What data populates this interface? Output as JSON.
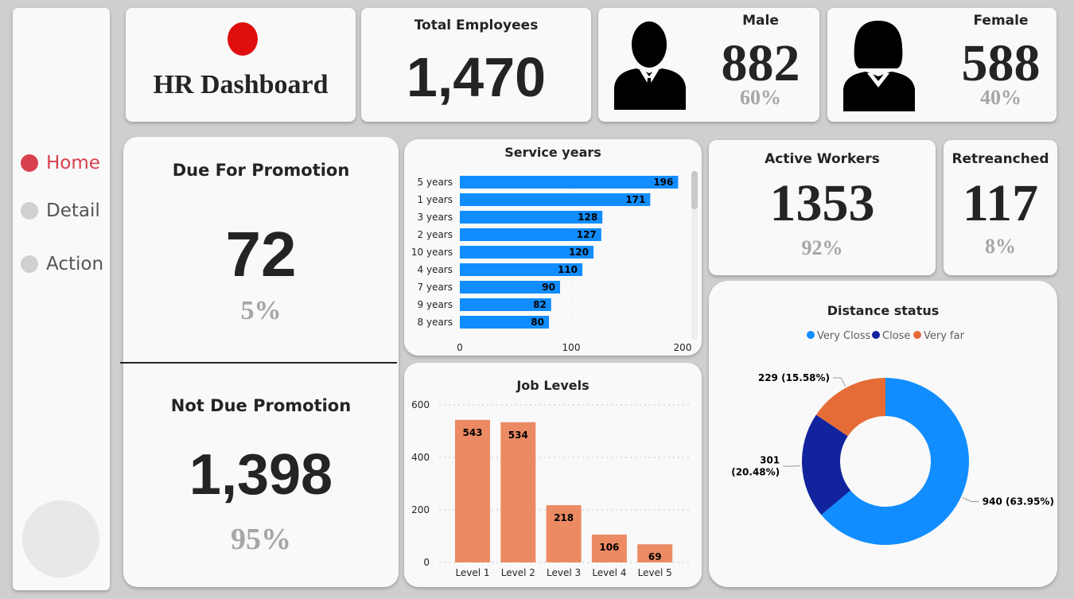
{
  "nav": {
    "items": [
      {
        "label": "Home",
        "active": true
      },
      {
        "label": "Detail",
        "active": false
      },
      {
        "label": "Action",
        "active": false
      }
    ]
  },
  "title": {
    "label": "HR Dashboard"
  },
  "total": {
    "title": "Total Employees",
    "value": "1,470"
  },
  "male": {
    "title": "Male",
    "value": "882",
    "pct": "60%"
  },
  "female": {
    "title": "Female",
    "value": "588",
    "pct": "40%"
  },
  "active": {
    "title": "Active Workers",
    "value": "1353",
    "pct": "92%"
  },
  "retrenched": {
    "title": "Retreanched",
    "value": "117",
    "pct": "8%"
  },
  "promotion": {
    "due_title": "Due For Promotion",
    "due_value": "72",
    "due_pct": "5%",
    "notdue_title": "Not Due Promotion",
    "notdue_value": "1,398",
    "notdue_pct": "95%"
  },
  "colors": {
    "accent": "#d9404d",
    "blue": "#118dff",
    "navy": "#12239e",
    "orange": "#e66c37",
    "bar_orange": "#eb8a63"
  },
  "chart_data": [
    {
      "type": "bar",
      "orientation": "horizontal",
      "title": "Service years",
      "categories": [
        "5 years",
        "1 years",
        "3 years",
        "2 years",
        "10 years",
        "4 years",
        "7 years",
        "9 years",
        "8 years"
      ],
      "values": [
        196,
        171,
        128,
        127,
        120,
        110,
        90,
        82,
        80
      ],
      "xlim": [
        0,
        200
      ],
      "xticks": [
        0,
        100,
        200
      ]
    },
    {
      "type": "bar",
      "title": "Job Levels",
      "categories": [
        "Level 1",
        "Level 2",
        "Level 3",
        "Level 4",
        "Level 5"
      ],
      "values": [
        543,
        534,
        218,
        106,
        69
      ],
      "ylim": [
        0,
        600
      ],
      "yticks": [
        0,
        200,
        400,
        600
      ],
      "grid": true
    },
    {
      "type": "pie",
      "donut": true,
      "title": "Distance status",
      "legend": "top",
      "labels": [
        "Very Closs",
        "Close",
        "Very far"
      ],
      "values": [
        940,
        301,
        229
      ],
      "percents": [
        "63.95%",
        "20.48%",
        "15.58%"
      ]
    }
  ]
}
